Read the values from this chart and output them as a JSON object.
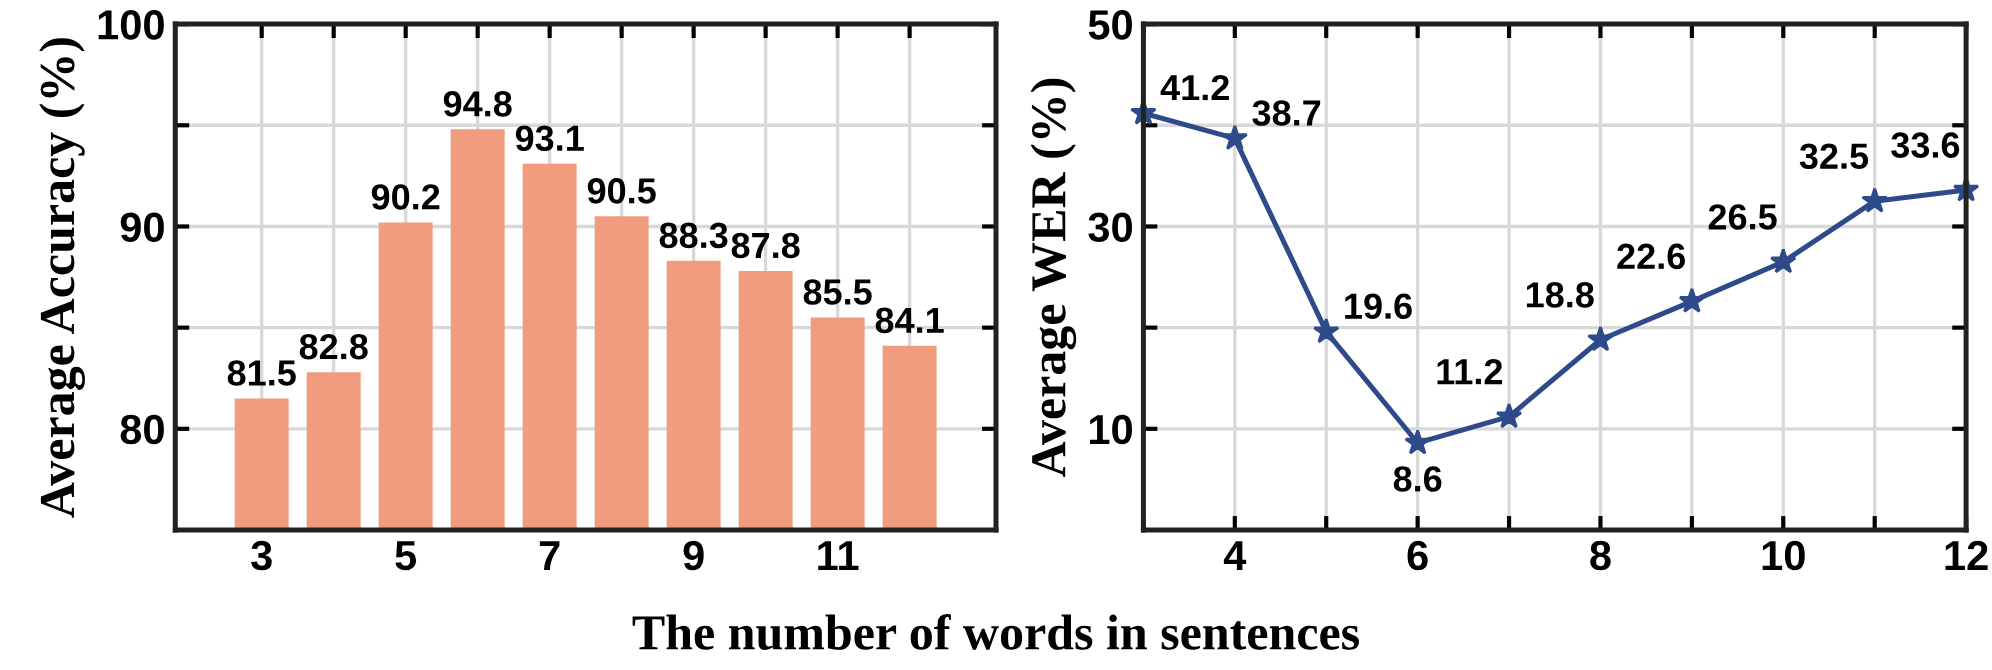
{
  "chart_data": [
    {
      "type": "bar",
      "xlabel": "The number of words in sentences",
      "ylabel": "Average Accuracy (%)",
      "x": [
        3,
        4,
        5,
        6,
        7,
        8,
        9,
        10,
        11,
        12
      ],
      "series": [
        {
          "color": "#f19c7f",
          "values": [
            81.5,
            82.8,
            90.2,
            94.8,
            93.1,
            90.5,
            88.3,
            87.8,
            85.5,
            84.1
          ]
        }
      ],
      "xlim": [
        1.8,
        13.2
      ],
      "ylim": [
        75,
        100
      ],
      "xticks": [
        3,
        {
          "value": 4,
          "label": null
        },
        5,
        {
          "value": 6,
          "label": null
        },
        7,
        {
          "value": 8,
          "label": null
        },
        9,
        {
          "value": 10,
          "label": null
        },
        11,
        {
          "value": 12,
          "label": null
        }
      ],
      "yticks": [
        80,
        {
          "value": 85,
          "label": null
        },
        90,
        {
          "value": 95,
          "label": null
        },
        100
      ],
      "grid": true,
      "data_labels": true
    },
    {
      "type": "line",
      "ylabel": "Average WER (%)",
      "x": [
        3,
        4,
        5,
        6,
        7,
        8,
        9,
        10,
        11,
        12
      ],
      "series": [
        {
          "color": "#2e4a8a",
          "values": [
            41.2,
            38.7,
            19.6,
            8.6,
            11.2,
            18.8,
            22.6,
            26.5,
            32.5,
            33.6
          ]
        }
      ],
      "xlim": [
        3,
        12
      ],
      "ylim": [
        0,
        50
      ],
      "xticks": [
        {
          "value": 3,
          "label": null
        },
        4,
        {
          "value": 5,
          "label": null
        },
        6,
        {
          "value": 7,
          "label": null
        },
        8,
        {
          "value": 9,
          "label": null
        },
        10,
        {
          "value": 11,
          "label": null
        },
        12
      ],
      "yticks": [
        10,
        {
          "value": 20,
          "label": null
        },
        30,
        {
          "value": 40,
          "label": null
        },
        50
      ],
      "grid": true,
      "data_labels": true,
      "marker": "star",
      "line_style": "solid"
    }
  ]
}
